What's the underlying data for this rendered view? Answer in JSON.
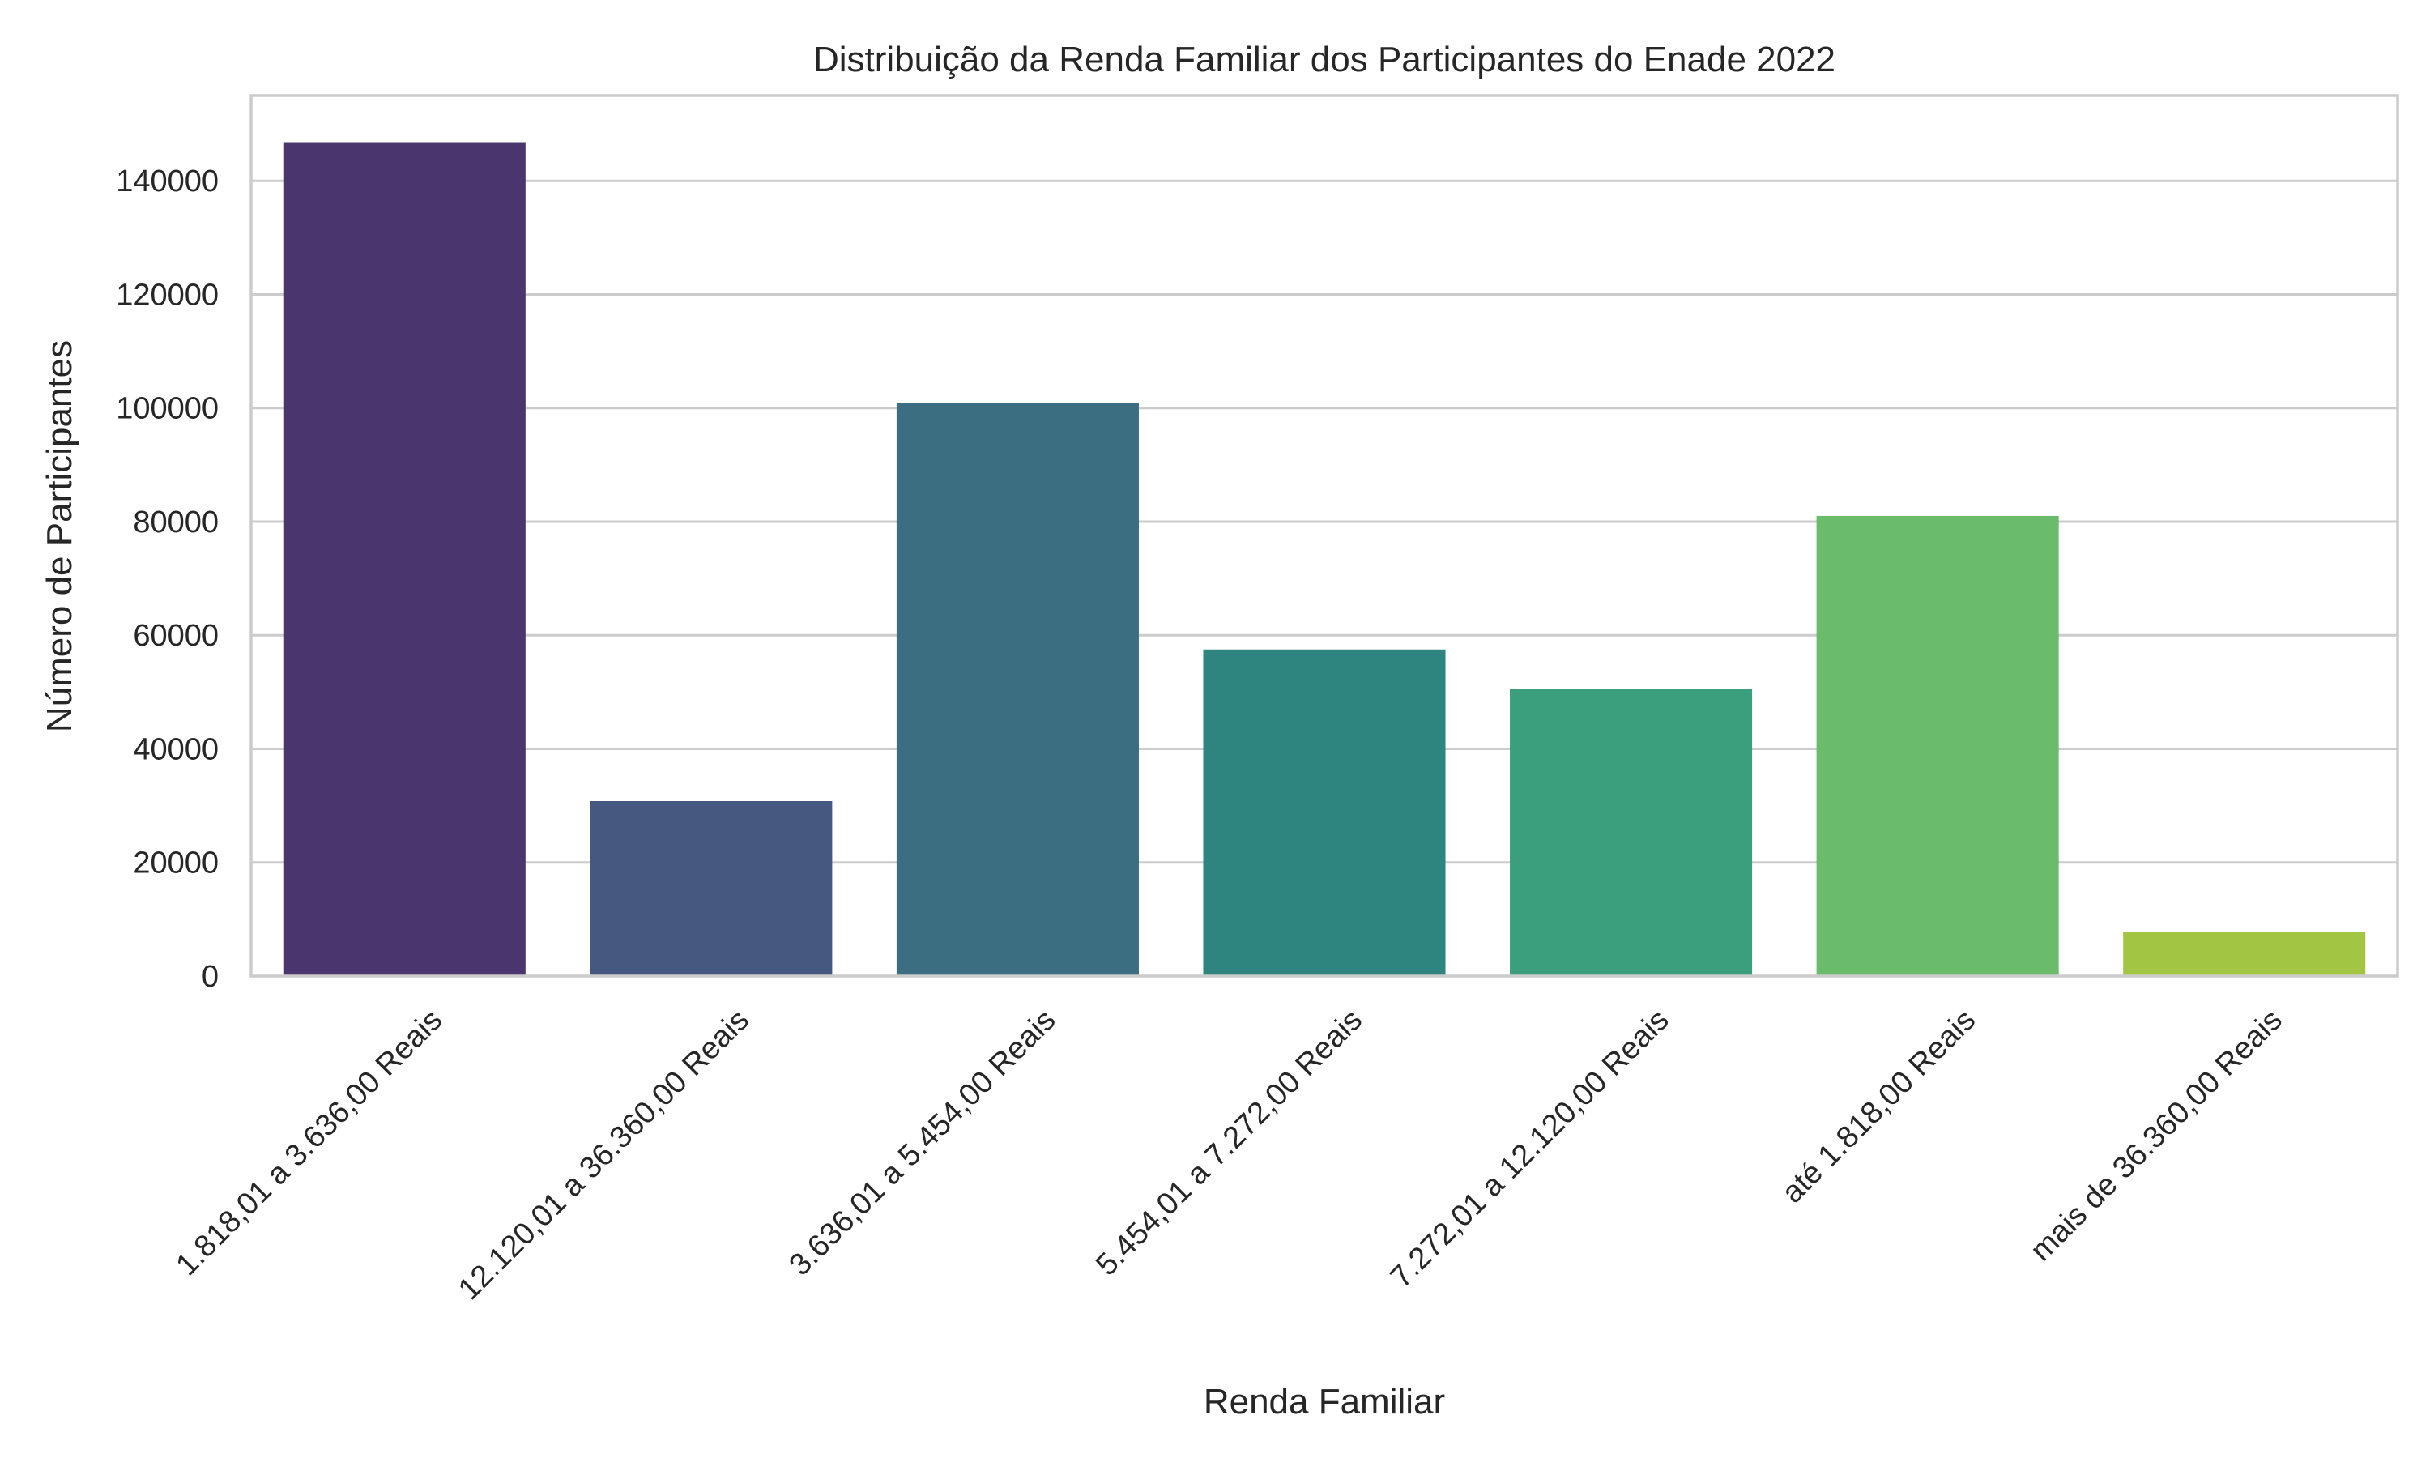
{
  "chart_data": {
    "type": "bar",
    "title": "Distribuição da Renda Familiar dos Participantes do Enade 2022",
    "xlabel": "Renda Familiar",
    "ylabel": "Número de Participantes",
    "categories": [
      "1.818,01 a 3.636,00 Reais",
      "12.120,01 a 36.360,00 Reais",
      "3.636,01 a 5.454,00 Reais",
      "5.454,01 a 7.272,00 Reais",
      "7.272,01 a 12.120,00 Reais",
      "até 1.818,00 Reais",
      "mais de 36.360,00 Reais"
    ],
    "values": [
      146800,
      30800,
      100900,
      57500,
      50500,
      81000,
      7800
    ],
    "colors": [
      "#4a356f",
      "#46587f",
      "#3a6e80",
      "#2e8580",
      "#3b9e7c",
      "#6abb6b",
      "#a2c544"
    ],
    "ylim": [
      0,
      155000
    ],
    "yticks": [
      0,
      20000,
      40000,
      60000,
      80000,
      100000,
      120000,
      140000
    ],
    "ytick_labels": [
      "0",
      "20000",
      "40000",
      "60000",
      "80000",
      "100000",
      "120000",
      "140000"
    ],
    "grid": "y",
    "legend": "none"
  }
}
